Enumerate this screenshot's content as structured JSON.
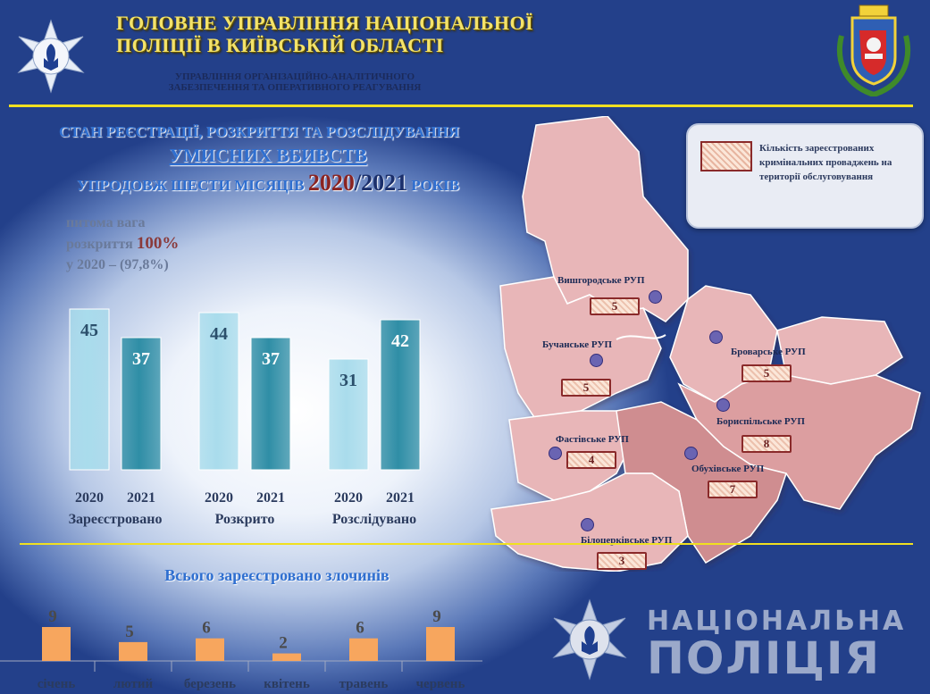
{
  "header": {
    "title_line1": "ГОЛОВНЕ УПРАВЛІННЯ НАЦІОНАЛЬНОЇ",
    "title_line2": "ПОЛІЦІЇ В КИЇВСЬКІЙ ОБЛАСТІ",
    "subtitle_line1": "УПРАВЛІННЯ ОРГАНІЗАЦІЙНО-АНАЛІТИЧНОГО",
    "subtitle_line2": "ЗАБЕЗПЕЧЕННЯ ТА ОПЕРАТИВНОГО РЕАГУВАННЯ"
  },
  "section_title": {
    "line1": "СТАН РЕЄСТРАЦІЇ, РОЗКРИТТЯ ТА РОЗСЛІДУВАННЯ",
    "line2": "УМИСНИХ ВБИВСТВ",
    "line3_prefix": "УПРОДОВЖ ШЕСТИ МІСЯЦІВ",
    "year_a": "2020",
    "slash": "/",
    "year_b": "2021",
    "line3_suffix": "РОКІВ"
  },
  "note": {
    "line1": "питома вага",
    "line2_prefix": "розкриття",
    "line2_value": "100%",
    "line3": "у 2020 – (97,8%)"
  },
  "legend": {
    "text": "Кількість зареєстрованих кримінальних проваджень на території обслуговування"
  },
  "map": {
    "districts": [
      {
        "name": "Вишгородське РУП",
        "count": "5"
      },
      {
        "name": "Бучанське РУП",
        "count": "5"
      },
      {
        "name": "Броварське РУП",
        "count": "5"
      },
      {
        "name": "Бориспільське РУП",
        "count": "8"
      },
      {
        "name": "Фастівське РУП",
        "count": "4"
      },
      {
        "name": "Обухівське РУП",
        "count": "7"
      },
      {
        "name": "Білоцерківське РУП",
        "count": "3"
      }
    ]
  },
  "bottom": {
    "title": "Всього зареєстровано злочинів"
  },
  "watermark": {
    "line1": "НАЦІОНАЛЬНА",
    "line2": "ПОЛІЦІЯ"
  },
  "colors": {
    "bar_2020": "#a9dcec",
    "bar_2021": "#2f8ea6",
    "bar_monthly": "#f7a65e",
    "gold": "#f0e020"
  },
  "chart_data": [
    {
      "type": "bar",
      "categories": [
        "Зареєстровано",
        "Розкрито",
        "Розслідувано"
      ],
      "series": [
        {
          "name": "2020",
          "values": [
            45,
            44,
            31
          ]
        },
        {
          "name": "2021",
          "values": [
            37,
            37,
            42
          ]
        }
      ],
      "ylim": [
        0,
        50
      ]
    },
    {
      "type": "bar",
      "title": "Всього зареєстровано злочинів",
      "categories": [
        "січень",
        "лютий",
        "березень",
        "квітень",
        "травень",
        "червень"
      ],
      "values": [
        9,
        5,
        6,
        2,
        6,
        9
      ],
      "ylim": [
        0,
        10
      ]
    }
  ]
}
